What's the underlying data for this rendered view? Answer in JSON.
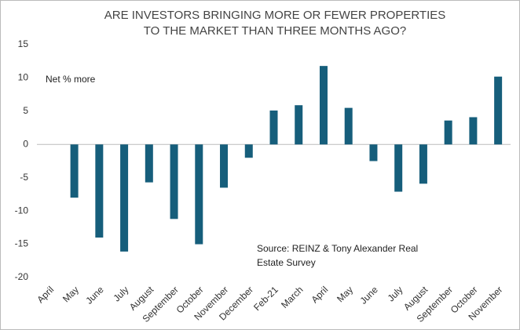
{
  "chart_data": {
    "type": "bar",
    "title": [
      "ARE INVESTORS BRINGING MORE OR FEWER PROPERTIES",
      "TO THE MARKET THAN THREE MONTHS AGO?"
    ],
    "annotations": [
      "Net % more",
      "Source: REINZ & Tony Alexander Real",
      "Estate Survey"
    ],
    "categories": [
      "April",
      "May",
      "June",
      "July",
      "August",
      "September",
      "October",
      "November",
      "December",
      "Feb-21",
      "March",
      "April",
      "May",
      "June",
      "July",
      "August",
      "September",
      "October",
      "November"
    ],
    "values": [
      null,
      -8,
      -14,
      -16.1,
      -5.7,
      -11.2,
      -15,
      -6.5,
      -2,
      5.1,
      5.9,
      11.8,
      5.5,
      -2.5,
      -7.1,
      -5.9,
      3.6,
      4.1,
      10.2
    ],
    "color": "#165e7b",
    "ylim": [
      -20,
      15
    ],
    "yticks": [
      -20,
      -15,
      -10,
      -5,
      0,
      5,
      10,
      15
    ],
    "grid": false
  }
}
